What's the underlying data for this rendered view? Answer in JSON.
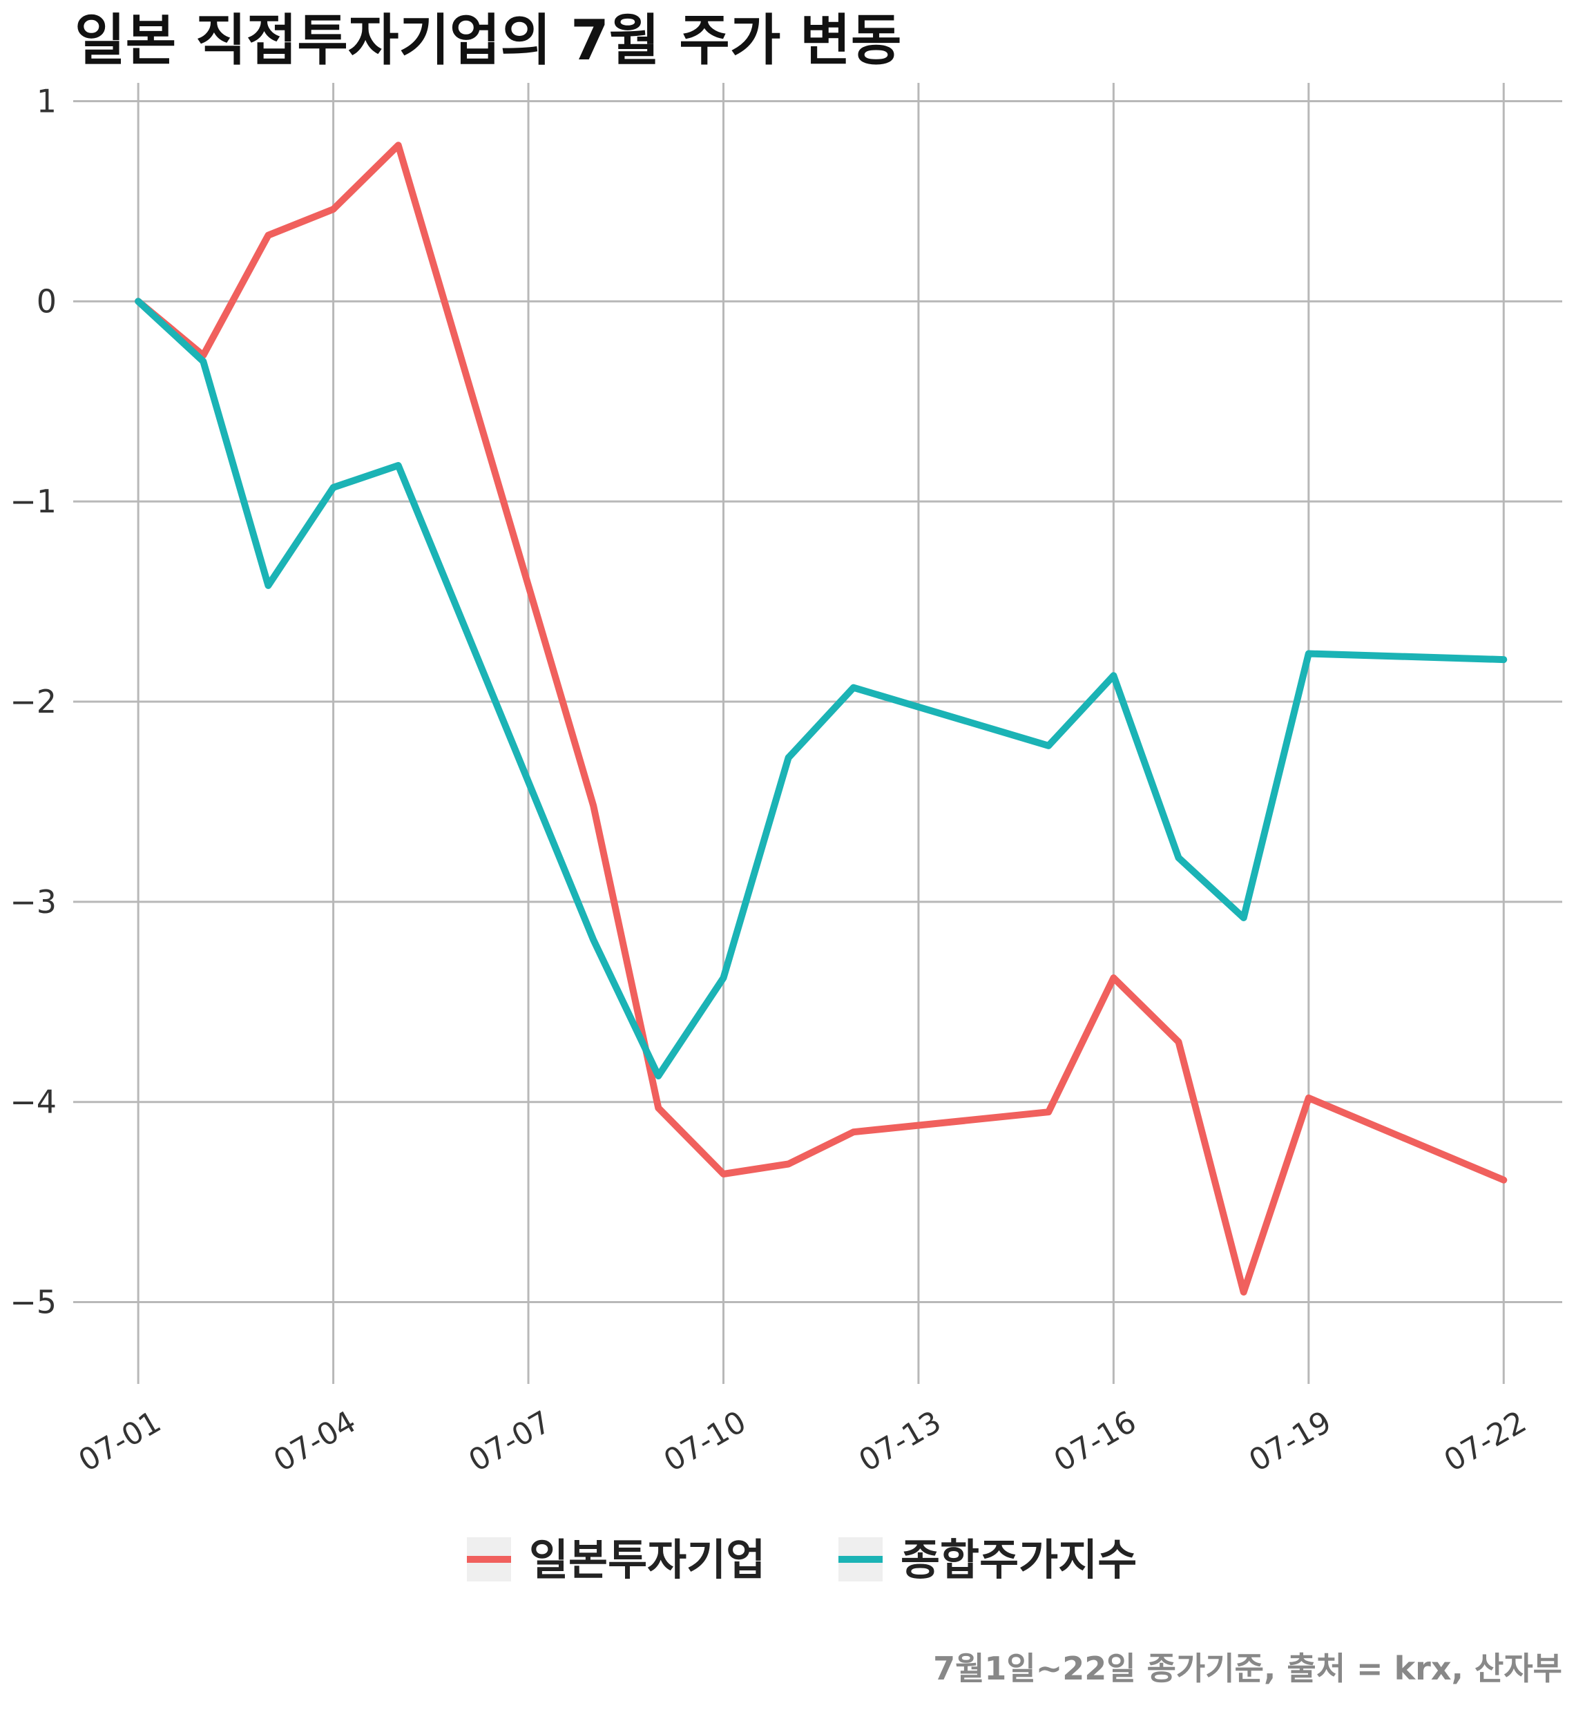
{
  "chart_data": {
    "type": "line",
    "title": "일본 직접투자기업의 7월 주가 변동",
    "caption": "7월1일~22일 종가기준, 출처 = krx, 산자부",
    "xlabel": "",
    "ylabel": "",
    "x": [
      "07-01",
      "07-02",
      "07-03",
      "07-04",
      "07-05",
      "07-08",
      "07-09",
      "07-10",
      "07-11",
      "07-12",
      "07-15",
      "07-16",
      "07-17",
      "07-18",
      "07-19",
      "07-22"
    ],
    "x_day_of_month": [
      1,
      2,
      3,
      4,
      5,
      8,
      9,
      10,
      11,
      12,
      15,
      16,
      17,
      18,
      19,
      22
    ],
    "xticks": [
      "07-01",
      "07-04",
      "07-07",
      "07-10",
      "07-13",
      "07-16",
      "07-19",
      "07-22"
    ],
    "xticks_day_of_month": [
      1,
      4,
      7,
      10,
      13,
      16,
      19,
      22
    ],
    "xlim_day_of_month": [
      0.0,
      22.9
    ],
    "yticks": [
      1,
      0,
      -1,
      -2,
      -3,
      -4,
      -5
    ],
    "ytick_labels": [
      "1",
      "0",
      "−1",
      "−2",
      "−3",
      "−4",
      "−5"
    ],
    "ylim": [
      -5.25,
      1.05
    ],
    "grid": true,
    "legend_position": "bottom",
    "series": [
      {
        "name": "일본투자기업",
        "color": "#F0605D",
        "values": [
          0.0,
          -0.27,
          0.33,
          0.46,
          0.78,
          -2.52,
          -4.03,
          -4.36,
          -4.31,
          -4.15,
          -4.05,
          -3.38,
          -3.7,
          -4.95,
          -3.98,
          -4.39
        ]
      },
      {
        "name": "종합주가지수",
        "color": "#1BB3B5",
        "values": [
          0.0,
          -0.3,
          -1.42,
          -0.93,
          -0.82,
          -3.19,
          -3.87,
          -3.38,
          -2.28,
          -1.93,
          -2.22,
          -1.87,
          -2.78,
          -3.08,
          -1.76,
          -1.79
        ]
      }
    ]
  }
}
